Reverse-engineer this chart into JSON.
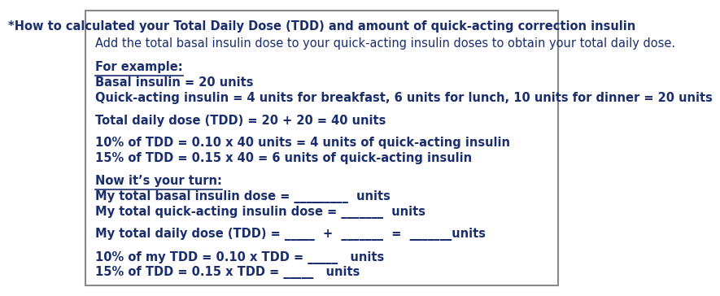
{
  "title": "*How to calculated your Total Daily Dose (TDD) and amount of quick-acting correction insulin",
  "subtitle": "Add the total basal insulin dose to your quick-acting insulin doses to obtain your total daily dose.",
  "section1_header": "For example:",
  "line1": "Basal insulin = 20 units",
  "line2": "Quick-acting insulin = 4 units for breakfast, 6 units for lunch, 10 units for dinner = 20 units",
  "line3": "Total daily dose (TDD) = 20 + 20 = 40 units",
  "line4": "10% of TDD = 0.10 x 40 units = 4 units of quick-acting insulin",
  "line5": "15% of TDD = 0.15 x 40 = 6 units of quick-acting insulin",
  "section2_header": "Now it’s your turn:",
  "fill1": "My total basal insulin dose = _________  units",
  "fill2": "My total quick-acting insulin dose = _______  units",
  "fill3": "My total daily dose (TDD) = _____  +  _______  =  _______units",
  "fill4": "10% of my TDD = 0.10 x TDD = _____   units",
  "fill5": "15% of TDD = 0.15 x TDD = _____   units",
  "text_color": "#1a2e6e",
  "border_color": "#888888",
  "bg_color": "#ffffff",
  "title_fontsize": 10.5,
  "body_fontsize": 10.5
}
